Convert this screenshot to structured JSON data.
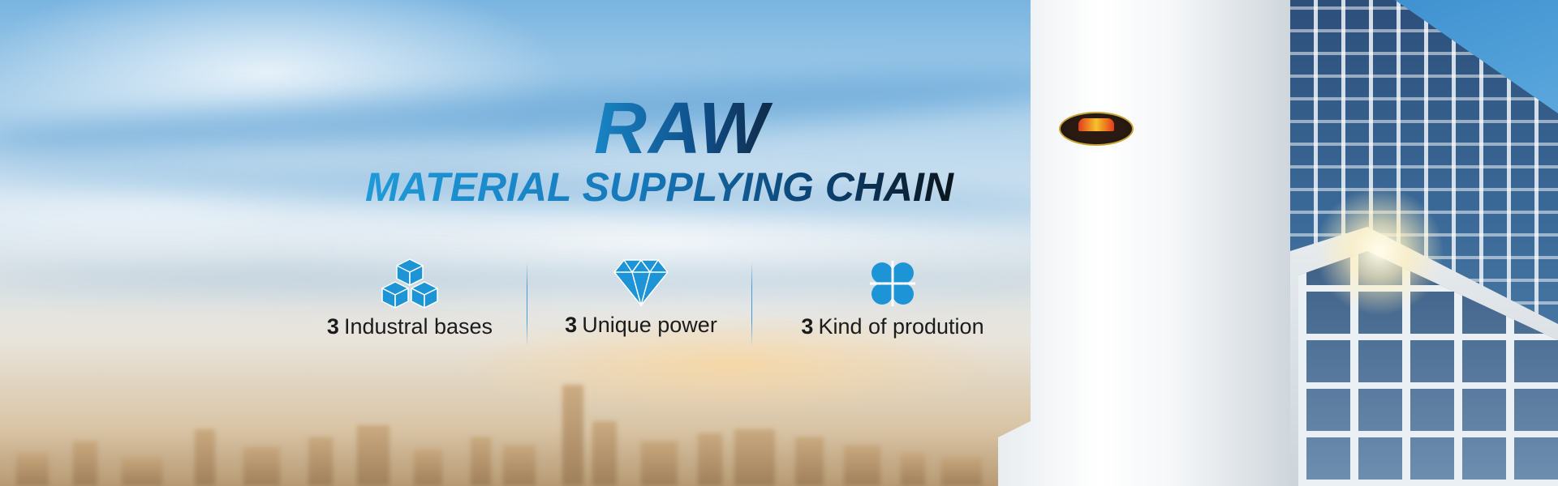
{
  "banner": {
    "headline": "RAW",
    "subheadline": "MATERIAL SUPPLYING CHAIN",
    "accent_color": "#1a8fd0",
    "features": [
      {
        "icon": "cubes-icon",
        "count": "3",
        "label": "Industral bases"
      },
      {
        "icon": "diamond-icon",
        "count": "3",
        "label": "Unique power"
      },
      {
        "icon": "clover-icon",
        "count": "3",
        "label": "Kind of prodution"
      }
    ]
  }
}
